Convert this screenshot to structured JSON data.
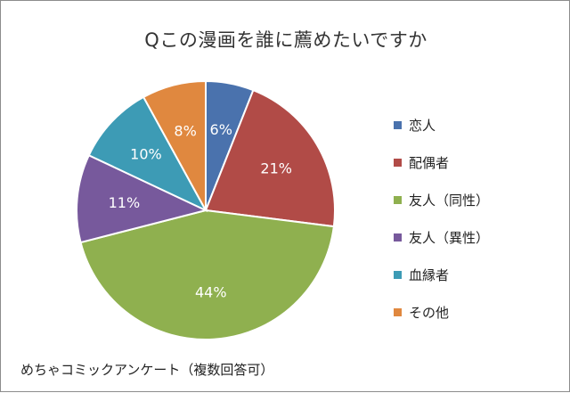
{
  "chart_data": {
    "type": "pie",
    "title": "Qこの漫画を誰に薦めたいですか",
    "categories": [
      "恋人",
      "配偶者",
      "友人（同性）",
      "友人（異性）",
      "血縁者",
      "その他"
    ],
    "values": [
      6,
      21,
      44,
      11,
      10,
      8
    ],
    "data_labels": [
      "6%",
      "21%",
      "44%",
      "11%",
      "10%",
      "8%"
    ],
    "colors": [
      "#4a72ad",
      "#b14b47",
      "#8fb04f",
      "#77599c",
      "#3d9bb5",
      "#e0883f"
    ],
    "legend_position": "right",
    "start_angle": "12 o'clock",
    "direction": "clockwise"
  },
  "note": "めちゃコミックアンケート（複数回答可）"
}
